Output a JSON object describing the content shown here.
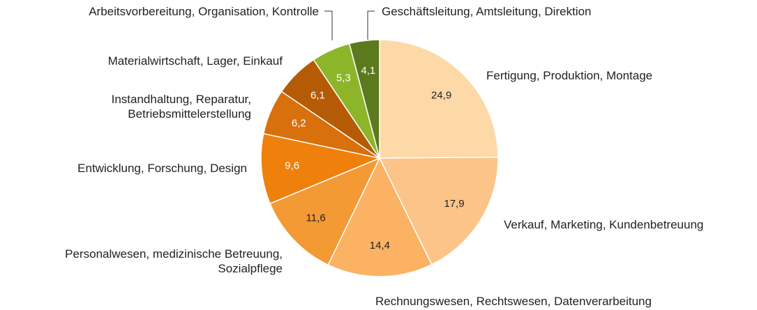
{
  "chart_data": {
    "type": "pie",
    "categories": [
      "Fertigung, Produktion, Montage",
      "Verkauf, Marketing, Kundenbetreuung",
      "Rechnungswesen, Rechtswesen, Datenverarbeitung",
      "Personalwesen, medizinische Betreuung,\nSozialpflege",
      "Entwicklung, Forschung, Design",
      "Instandhaltung, Reparatur,\nBetriebsmittelerstellung",
      "Materialwirtschaft, Lager, Einkauf",
      "Arbeitsvorbereitung, Organisation, Kontrolle",
      "Geschäftsleitung, Amtsleitung, Direktion"
    ],
    "values": [
      24.9,
      17.9,
      14.4,
      11.6,
      9.6,
      6.2,
      6.1,
      5.3,
      4.1
    ],
    "value_labels": [
      "24,9",
      "17,9",
      "14,4",
      "11,6",
      "9,6",
      "6,2",
      "6,1",
      "5,3",
      "4,1"
    ],
    "colors": [
      "#fdd9a8",
      "#fcc488",
      "#fbb263",
      "#f39a34",
      "#ef800c",
      "#d8700c",
      "#b65b05",
      "#8db52a",
      "#5b7a1e"
    ]
  }
}
